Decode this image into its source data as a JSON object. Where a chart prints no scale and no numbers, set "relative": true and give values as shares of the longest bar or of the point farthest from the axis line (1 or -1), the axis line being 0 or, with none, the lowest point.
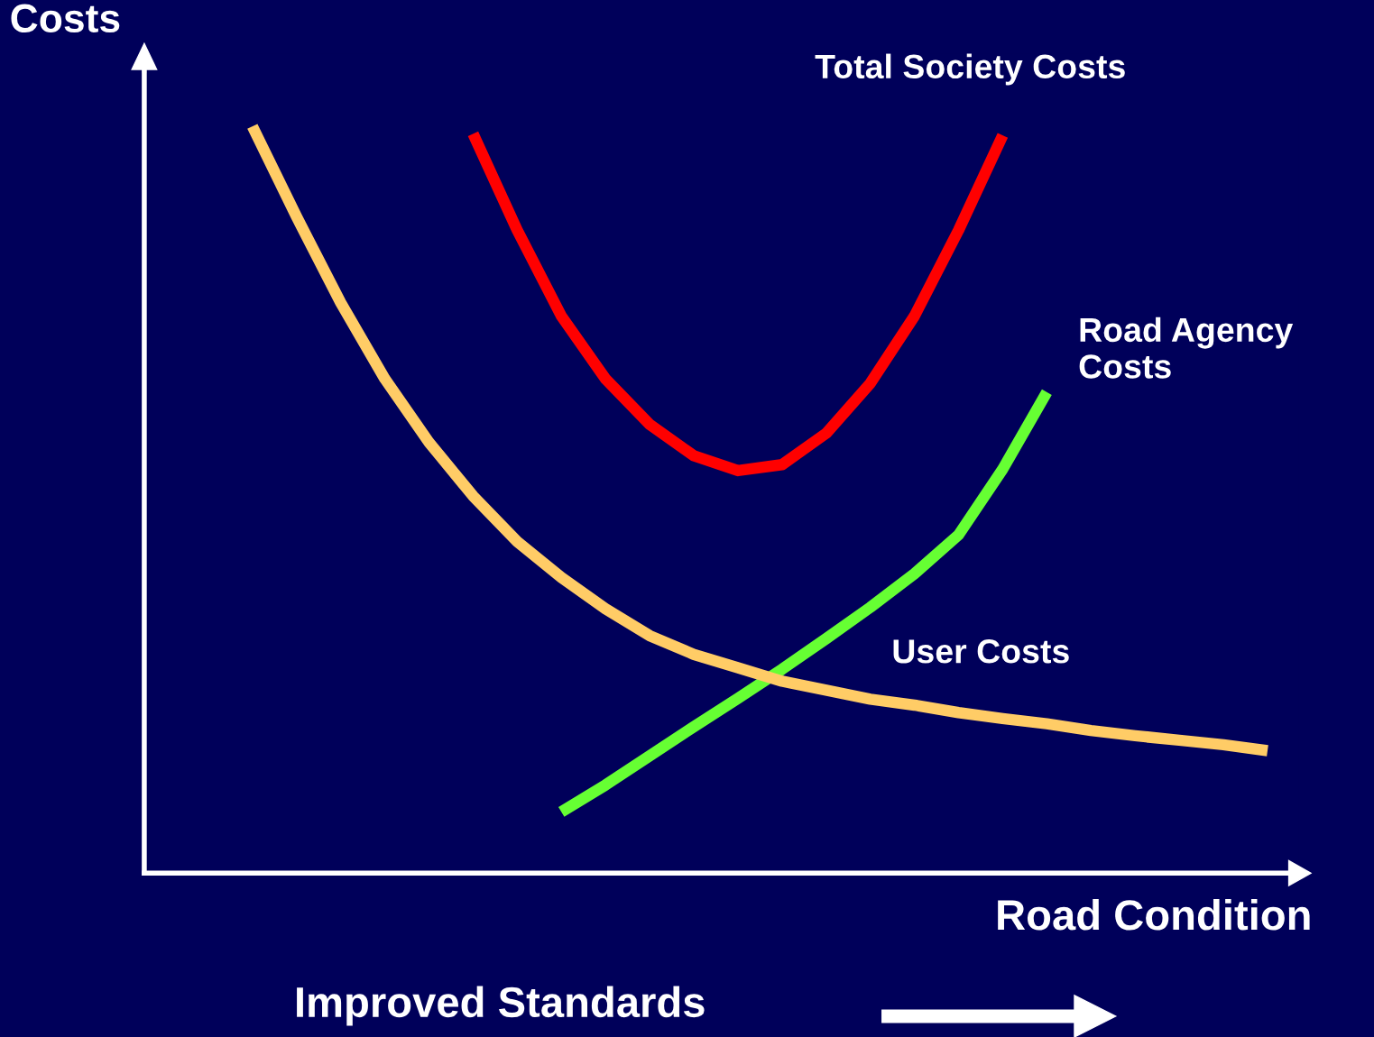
{
  "chart_data": {
    "type": "line",
    "relative": true,
    "xlabel": "Road Condition",
    "ylabel": "Costs",
    "annotations": [
      "Improved Standards"
    ],
    "categories": [
      null,
      null,
      null,
      null,
      null,
      null,
      null,
      null,
      null,
      null,
      null,
      null,
      null,
      null,
      null,
      null,
      null,
      null,
      null,
      null,
      null,
      null,
      null,
      null
    ],
    "series": [
      {
        "name": "Total Society Costs",
        "color": "#ff0000",
        "values": [
          null,
          null,
          null,
          null,
          null,
          0.99,
          0.861,
          0.746,
          0.662,
          0.601,
          0.559,
          0.539,
          0.547,
          0.589,
          0.656,
          0.746,
          0.861,
          0.988,
          null,
          null,
          null,
          null,
          null,
          null
        ]
      },
      {
        "name": "Road Agency Costs",
        "color": "#66ff33",
        "values": [
          null,
          null,
          null,
          null,
          null,
          null,
          null,
          0.082,
          0.118,
          0.157,
          0.196,
          0.234,
          0.273,
          0.314,
          0.356,
          0.401,
          0.453,
          0.541,
          0.644,
          null,
          null,
          null,
          null,
          null
        ]
      },
      {
        "name": "User Costs",
        "color": "#ffcc66",
        "values": [
          1.0,
          0.879,
          0.764,
          0.662,
          0.577,
          0.505,
          0.444,
          0.396,
          0.354,
          0.318,
          0.293,
          0.275,
          0.257,
          0.245,
          0.233,
          0.225,
          0.215,
          0.207,
          0.2,
          0.191,
          0.184,
          0.178,
          0.172,
          0.164
        ]
      }
    ],
    "legend": false,
    "marker": "none",
    "line_style": "solid"
  }
}
